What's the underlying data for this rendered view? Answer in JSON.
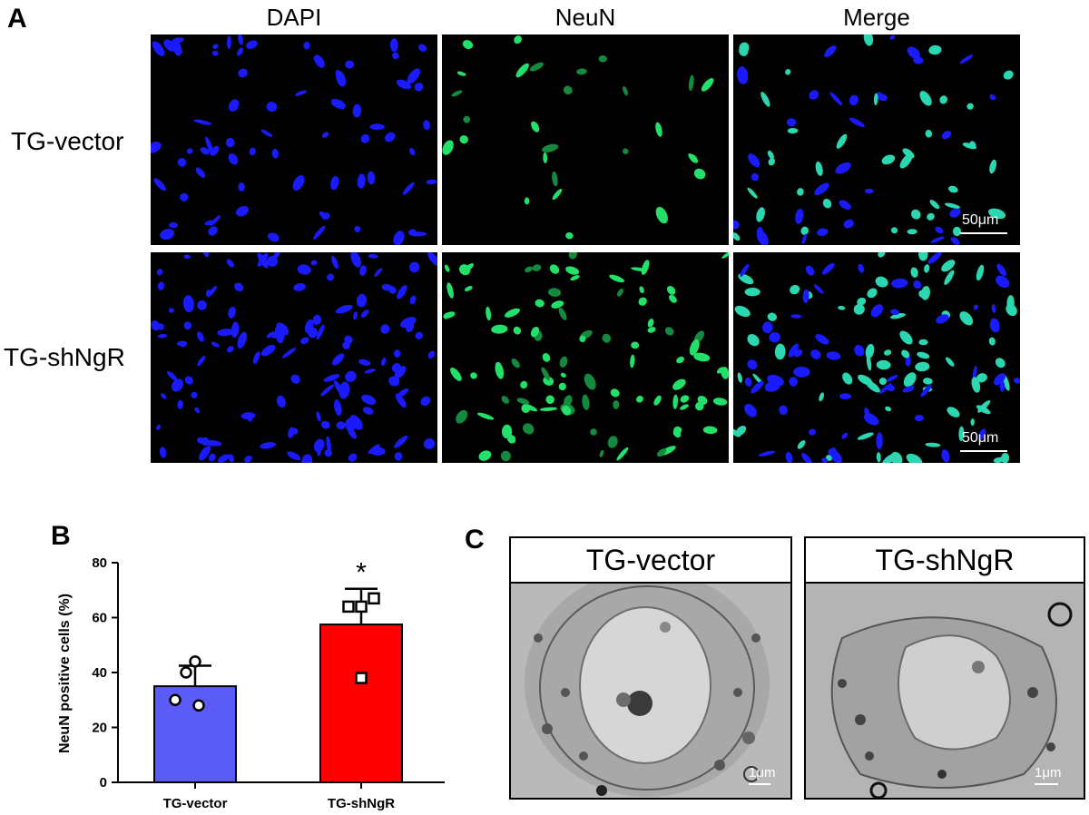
{
  "panelA": {
    "letter": "A",
    "columns": [
      "DAPI",
      "NeuN",
      "Merge"
    ],
    "rows": [
      "TG-vector",
      "TG-shNgR"
    ],
    "scale_bar": "50μm"
  },
  "panelB": {
    "letter": "B"
  },
  "panelC": {
    "letter": "C",
    "titles": [
      "TG-vector",
      "TG-shNgR"
    ],
    "scale_bar": "1μm"
  },
  "chart_data": {
    "type": "bar",
    "categories": [
      "TG-vector",
      "TG-shNgR"
    ],
    "values": [
      35,
      57.5
    ],
    "errors": [
      7.5,
      13
    ],
    "ylabel": "NeuN positive cells (%)",
    "ylim": [
      0,
      80
    ],
    "yticks": [
      0,
      20,
      40,
      60,
      80
    ],
    "colors": [
      "#5b5bf7",
      "#ff0000"
    ],
    "significance": [
      "",
      "*"
    ],
    "points": [
      {
        "category": "TG-vector",
        "marker": "circle",
        "values": [
          44,
          40,
          30,
          28
        ]
      },
      {
        "category": "TG-shNgR",
        "marker": "square",
        "values": [
          64,
          64,
          67,
          38
        ]
      }
    ]
  }
}
